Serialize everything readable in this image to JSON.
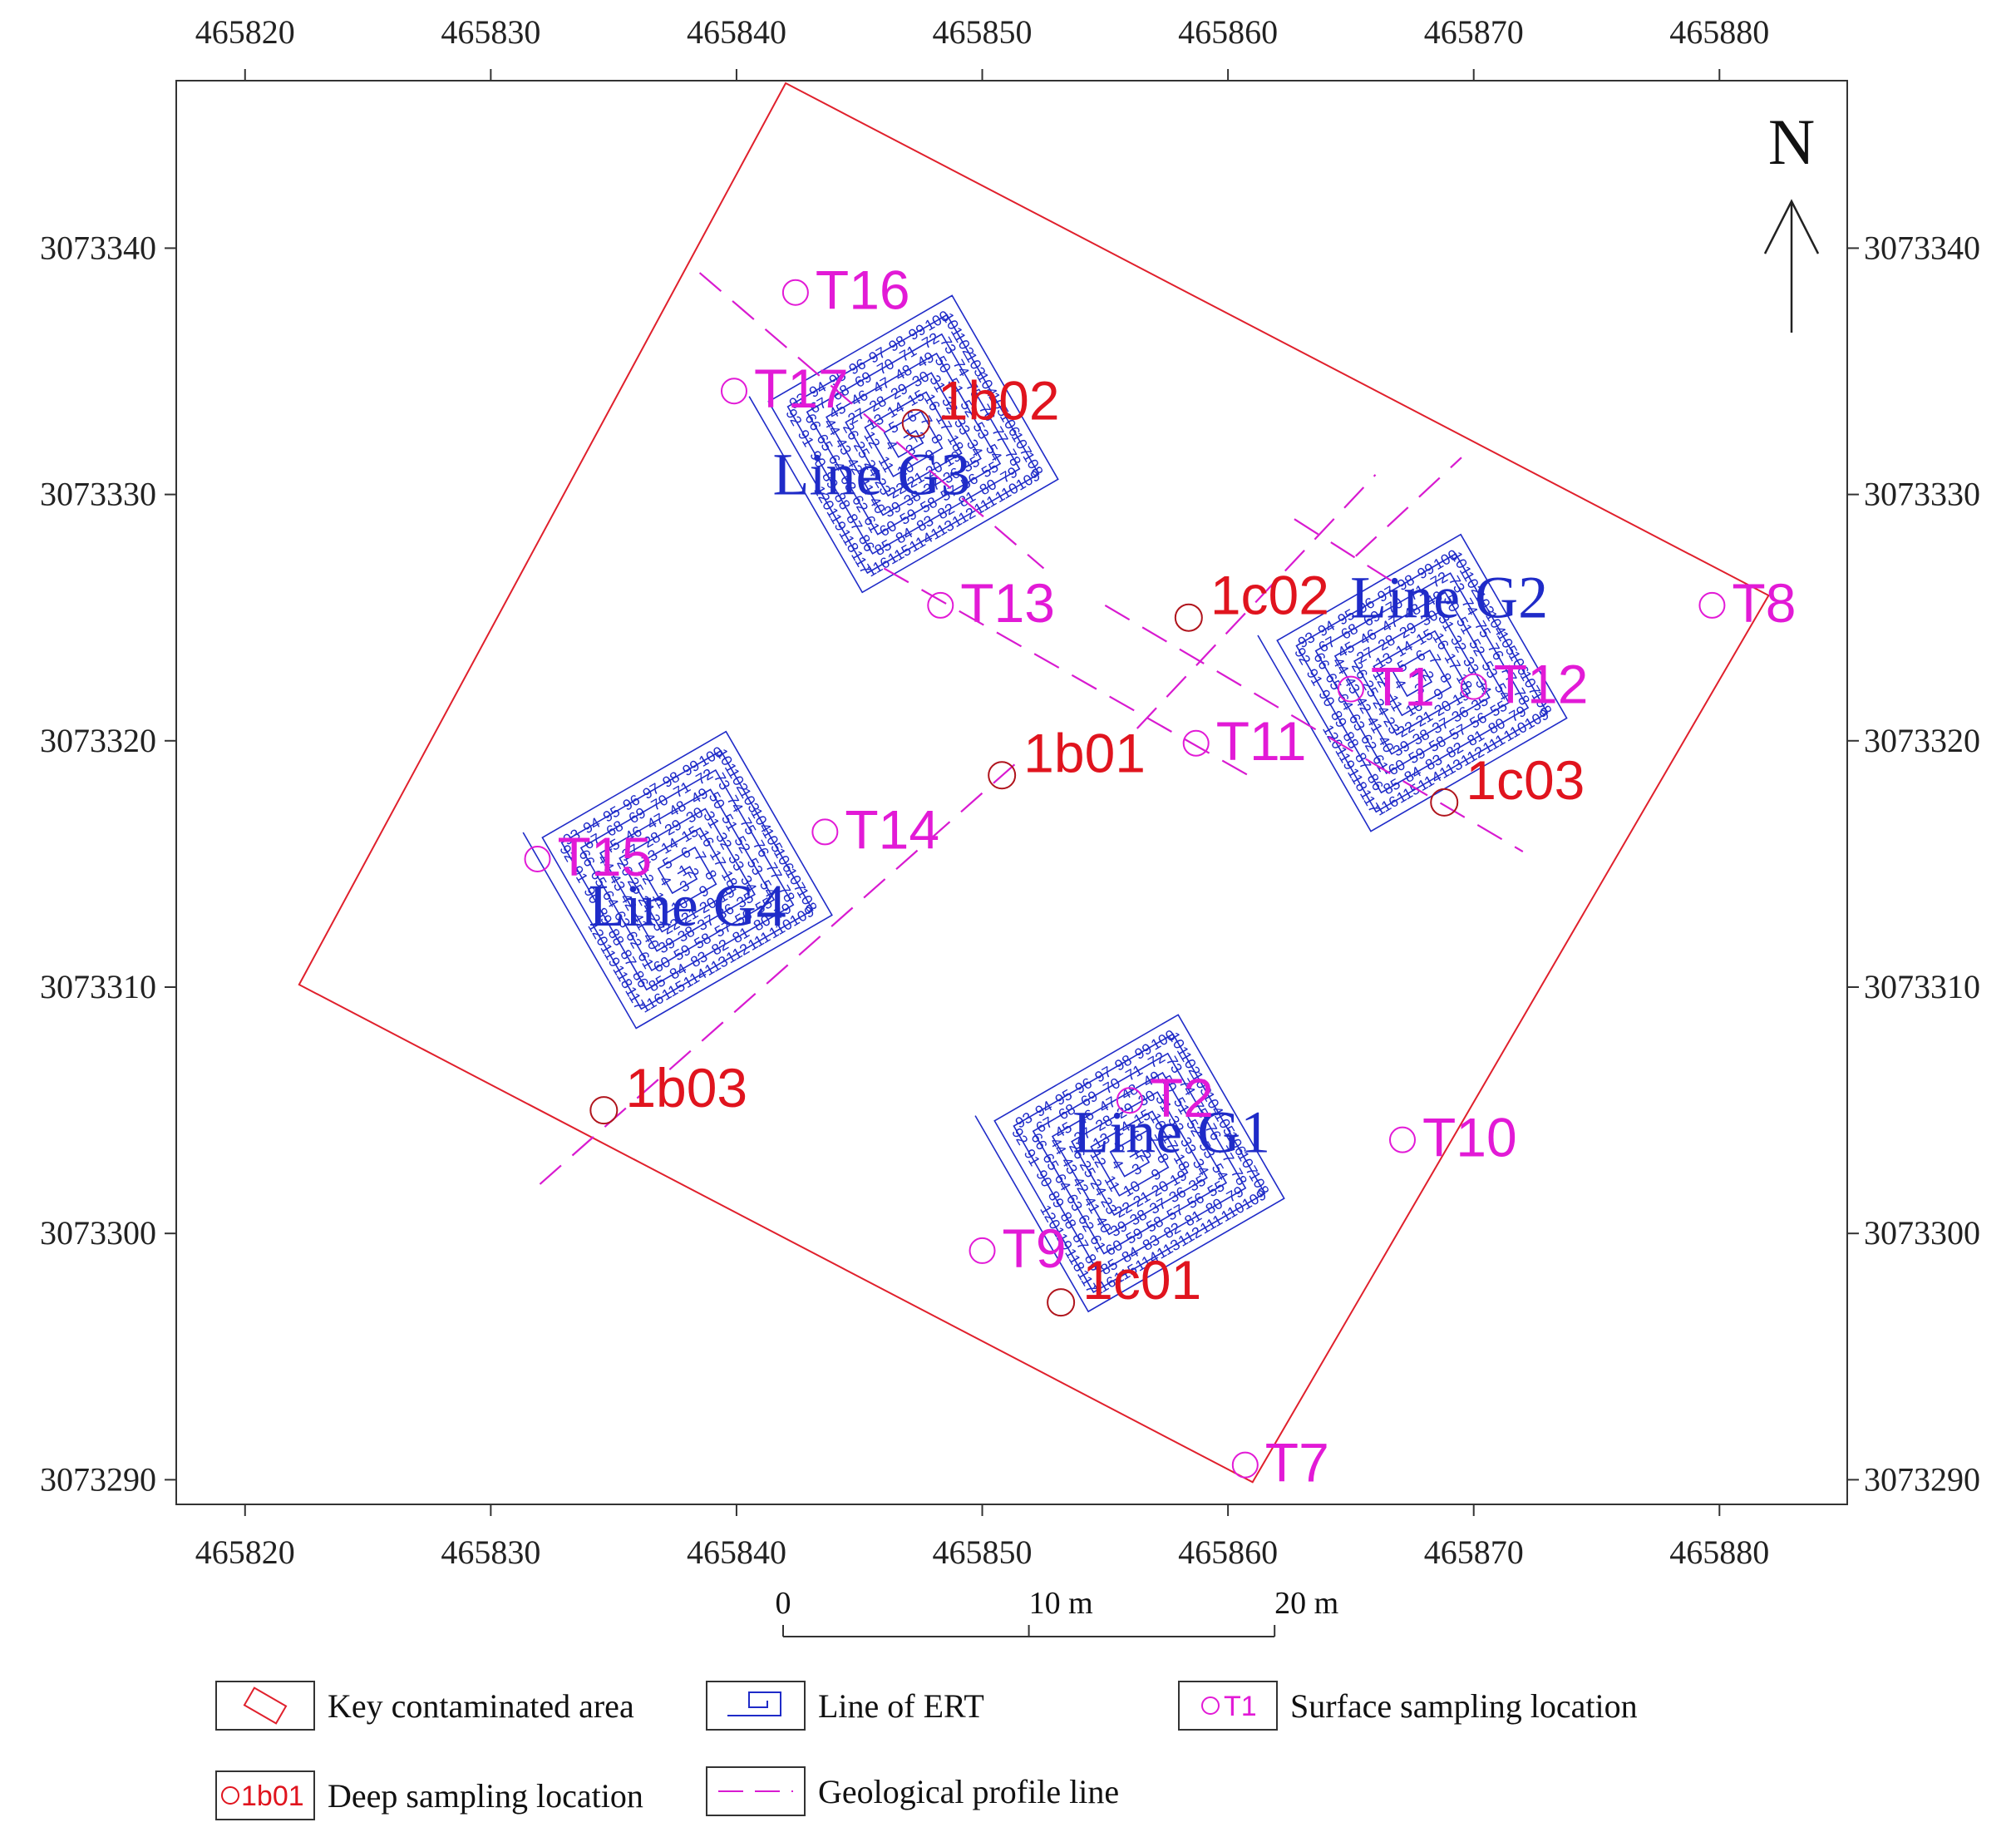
{
  "map": {
    "extent": {
      "x_min": 465817.2,
      "x_max": 465885.2,
      "y_min": 3073289.0,
      "y_max": 3073346.8
    },
    "x_ticks": [
      465820,
      465830,
      465840,
      465850,
      465860,
      465870,
      465880
    ],
    "y_ticks": [
      3073290,
      3073300,
      3073310,
      3073320,
      3073330,
      3073340
    ],
    "x_tick_labels": [
      "465820",
      "465830",
      "465840",
      "465850",
      "465860",
      "465870",
      "465880"
    ],
    "y_tick_labels": [
      "3073290",
      "3073300",
      "3073310",
      "3073320",
      "3073330",
      "3073340"
    ],
    "north_label": "N",
    "colors": {
      "ert": "#1f2bc8",
      "area": "#e0202c",
      "surface": "#e21ad6",
      "deep": "#e0141e",
      "profile": "#d81ad0",
      "frame": "#333333"
    },
    "contaminated_area": [
      [
        465842.0,
        3073346.7
      ],
      [
        465882.0,
        3073325.9
      ],
      [
        465861.0,
        3073289.9
      ],
      [
        465822.2,
        3073310.1
      ]
    ],
    "ert_lines": [
      {
        "name": "Line G1",
        "center": [
          465856.0,
          3073303.1
        ],
        "angle_deg": 30,
        "label_pos": [
          465857.7,
          3073303.3
        ]
      },
      {
        "name": "Line G2",
        "center": [
          465867.5,
          3073322.6
        ],
        "angle_deg": 30,
        "label_pos": [
          465869.0,
          3073325.0
        ]
      },
      {
        "name": "Line G3",
        "center": [
          465846.8,
          3073332.3
        ],
        "angle_deg": 30,
        "label_pos": [
          465845.5,
          3073330.0
        ]
      },
      {
        "name": "Line G4",
        "center": [
          465837.6,
          3073314.6
        ],
        "angle_deg": 30,
        "label_pos": [
          465838.0,
          3073312.5
        ]
      }
    ],
    "surface_samples": [
      {
        "name": "T1",
        "x": 465865.0,
        "y": 3073322.1
      },
      {
        "name": "T2",
        "x": 465856.0,
        "y": 3073305.4
      },
      {
        "name": "T7",
        "x": 465860.7,
        "y": 3073290.6
      },
      {
        "name": "T8",
        "x": 465879.7,
        "y": 3073325.5
      },
      {
        "name": "T9",
        "x": 465850.0,
        "y": 3073299.3
      },
      {
        "name": "T10",
        "x": 465867.1,
        "y": 3073303.8
      },
      {
        "name": "T11",
        "x": 465858.7,
        "y": 3073319.9
      },
      {
        "name": "T12",
        "x": 465870.0,
        "y": 3073322.2
      },
      {
        "name": "T13",
        "x": 465848.3,
        "y": 3073325.5
      },
      {
        "name": "T14",
        "x": 465843.6,
        "y": 3073316.3
      },
      {
        "name": "T15",
        "x": 465831.9,
        "y": 3073315.2
      },
      {
        "name": "T16",
        "x": 465842.4,
        "y": 3073338.2
      },
      {
        "name": "T17",
        "x": 465839.9,
        "y": 3073334.2
      }
    ],
    "deep_samples": [
      {
        "name": "1b01",
        "x": 465850.8,
        "y": 3073318.6
      },
      {
        "name": "1b02",
        "x": 465847.3,
        "y": 3073332.9
      },
      {
        "name": "1b03",
        "x": 465834.6,
        "y": 3073305.0
      },
      {
        "name": "1c01",
        "x": 465853.2,
        "y": 3073297.2
      },
      {
        "name": "1c02",
        "x": 465858.4,
        "y": 3073325.0
      },
      {
        "name": "1c03",
        "x": 465868.8,
        "y": 3073317.5
      }
    ],
    "profile_lines": [
      [
        [
          465838.5,
          3073339.0
        ],
        [
          465852.5,
          3073327.0
        ]
      ],
      [
        [
          465846.0,
          3073327.0
        ],
        [
          465861.0,
          3073318.5
        ]
      ],
      [
        [
          465855.0,
          3073325.5
        ],
        [
          465872.0,
          3073315.5
        ]
      ],
      [
        [
          465856.3,
          3073320.5
        ],
        [
          465866.0,
          3073330.8
        ]
      ],
      [
        [
          465832.0,
          3073302.0
        ],
        [
          465851.5,
          3073319.2
        ]
      ],
      [
        [
          465862.7,
          3073329.0
        ],
        [
          465866.8,
          3073326.4
        ]
      ],
      [
        [
          465865.2,
          3073327.5
        ],
        [
          465869.5,
          3073331.5
        ]
      ]
    ],
    "scale_bar": {
      "labels": [
        "0",
        "10 m",
        "20 m"
      ],
      "length_m": 20
    },
    "legend": [
      {
        "symbol": "area",
        "label": "Key contaminated area"
      },
      {
        "symbol": "ert",
        "label": "Line of ERT"
      },
      {
        "symbol": "surface",
        "label": "Surface sampling location",
        "sample_text": "T1"
      },
      {
        "symbol": "deep",
        "label": "Deep sampling location",
        "sample_text": "1b01"
      },
      {
        "symbol": "profile",
        "label": "Geological profile line"
      }
    ]
  }
}
